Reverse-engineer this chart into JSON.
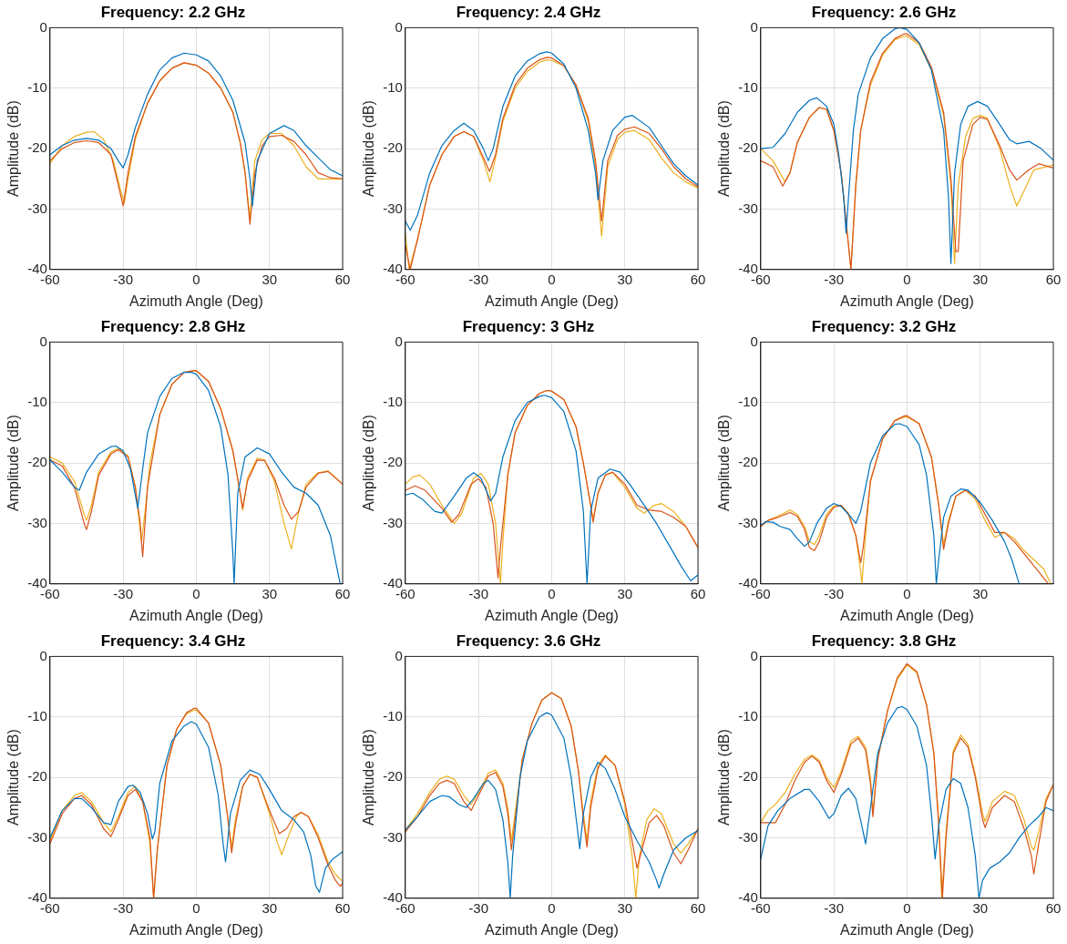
{
  "chart_data": [
    {
      "type": "line",
      "title": "Frequency: 2.2 GHz",
      "xlabel": "Azimuth Angle (Deg)",
      "ylabel": "Amplitude (dB)",
      "xlim": [
        -60,
        60
      ],
      "xticks": [
        -60,
        -30,
        0,
        30,
        60
      ],
      "ylim": [
        -40,
        0
      ],
      "yticks": [
        -40,
        -30,
        -20,
        -10,
        0
      ],
      "grid": true,
      "series": [
        {
          "color": "#0072bd",
          "x": [
            -60,
            -55,
            -50,
            -45,
            -40,
            -35,
            -32,
            -30,
            -28,
            -25,
            -20,
            -15,
            -10,
            -5,
            0,
            5,
            10,
            15,
            20,
            22,
            23,
            25,
            30,
            36,
            40,
            45,
            50,
            55,
            60
          ],
          "values": [
            -21,
            -19.5,
            -18.6,
            -18.3,
            -18.6,
            -20,
            -22,
            -23.2,
            -21,
            -16.5,
            -11,
            -7,
            -5,
            -4.2,
            -4.5,
            -5.5,
            -8,
            -12,
            -19,
            -25,
            -29.5,
            -22,
            -17.5,
            -16.2,
            -17,
            -19.5,
            -21.5,
            -23.5,
            -24.5
          ]
        },
        {
          "color": "#d95319",
          "x": [
            -60,
            -55,
            -50,
            -45,
            -40,
            -35,
            -32,
            -30,
            -28,
            -25,
            -20,
            -15,
            -10,
            -5,
            0,
            5,
            10,
            15,
            18,
            20,
            22,
            24,
            27,
            30,
            35,
            40,
            45,
            50,
            55,
            60
          ],
          "values": [
            -22,
            -20,
            -19,
            -18.7,
            -19,
            -21,
            -26,
            -29.5,
            -24,
            -18,
            -12.5,
            -8.8,
            -6.7,
            -5.8,
            -6.2,
            -7.5,
            -10,
            -14,
            -19,
            -24,
            -32.5,
            -24,
            -19.5,
            -18,
            -17.8,
            -18.8,
            -21,
            -24,
            -24.8,
            -25
          ]
        },
        {
          "color": "#edb120",
          "x": [
            -60,
            -55,
            -50,
            -45,
            -42,
            -38,
            -34,
            -31,
            -29.5,
            -28,
            -25,
            -20,
            -15,
            -10,
            -5,
            0,
            5,
            10,
            15,
            18,
            20,
            22,
            24,
            27,
            30,
            35,
            40,
            45,
            50,
            55,
            60
          ],
          "values": [
            -22.5,
            -19.5,
            -18,
            -17.3,
            -17.2,
            -18.5,
            -22,
            -27,
            -29,
            -25,
            -18.5,
            -12.5,
            -8.8,
            -6.7,
            -5.8,
            -6.2,
            -7.5,
            -10,
            -14,
            -19,
            -24,
            -31.5,
            -22,
            -18.5,
            -17.5,
            -17.5,
            -19.5,
            -23,
            -25,
            -25,
            -25
          ]
        }
      ]
    },
    {
      "type": "line",
      "title": "Frequency: 2.4 GHz",
      "xlabel": "Azimuth Angle (Deg)",
      "ylabel": "Amplitude (dB)",
      "xlim": [
        -60,
        60
      ],
      "xticks": [
        -60,
        -30,
        0,
        30,
        60
      ],
      "ylim": [
        -40,
        0
      ],
      "yticks": [
        -40,
        -30,
        -20,
        -10,
        0
      ],
      "grid": true,
      "series": [
        {
          "color": "#0072bd",
          "x": [
            -60,
            -58,
            -55,
            -50,
            -45,
            -40,
            -36,
            -32,
            -28,
            -26,
            -24,
            -20,
            -15,
            -10,
            -5,
            -2,
            0,
            5,
            10,
            15,
            18,
            19,
            21,
            25,
            30,
            33,
            40,
            45,
            50,
            55,
            60
          ],
          "values": [
            -32,
            -33.5,
            -31,
            -24,
            -19.5,
            -17,
            -15.8,
            -17,
            -20,
            -22,
            -20,
            -13,
            -8,
            -5.5,
            -4.3,
            -4,
            -4.2,
            -6,
            -10,
            -17,
            -24,
            -28.5,
            -22,
            -17,
            -14.8,
            -14.5,
            -16.5,
            -19.5,
            -22.5,
            -24.5,
            -26
          ]
        },
        {
          "color": "#d95319",
          "x": [
            -60,
            -58,
            -55,
            -50,
            -45,
            -40,
            -36,
            -32,
            -28,
            -25.5,
            -23,
            -20,
            -15,
            -10,
            -5,
            -2,
            0,
            5,
            10,
            15,
            18,
            20.5,
            23,
            27,
            30,
            34,
            40,
            45,
            50,
            55,
            60
          ],
          "values": [
            -36,
            -40,
            -35,
            -26,
            -21,
            -18,
            -17.2,
            -18,
            -21.5,
            -23.8,
            -21,
            -15,
            -9.5,
            -6.7,
            -5.3,
            -4.9,
            -5,
            -6.3,
            -9.5,
            -15,
            -22,
            -32,
            -22,
            -17.8,
            -16.8,
            -16.4,
            -17.5,
            -20,
            -23,
            -25,
            -26.3
          ]
        },
        {
          "color": "#edb120",
          "x": [
            -60,
            -58.5,
            -55,
            -50,
            -45,
            -40,
            -36,
            -32,
            -28,
            -25.3,
            -23,
            -20,
            -15,
            -10,
            -5,
            -2,
            0,
            5,
            10,
            15,
            18,
            20.5,
            23,
            27,
            30,
            34,
            40,
            45,
            50,
            55,
            60
          ],
          "values": [
            -34,
            -40,
            -35,
            -26,
            -21,
            -18,
            -17.2,
            -18,
            -22,
            -25.5,
            -21.5,
            -15.5,
            -10,
            -7.2,
            -5.7,
            -5.3,
            -5.4,
            -6.3,
            -9.5,
            -15.5,
            -23,
            -34.5,
            -23,
            -18.5,
            -17.3,
            -17,
            -18.5,
            -21.5,
            -24,
            -25.5,
            -26.5
          ]
        }
      ]
    },
    {
      "type": "line",
      "title": "Frequency: 2.6 GHz",
      "xlabel": "Azimuth Angle (Deg)",
      "ylabel": "Amplitude (dB)",
      "xlim": [
        -60,
        60
      ],
      "xticks": [
        -60,
        -30,
        0,
        30,
        60
      ],
      "ylim": [
        -40,
        0
      ],
      "yticks": [
        -40,
        -30,
        -20,
        -10,
        0
      ],
      "grid": true,
      "series": [
        {
          "color": "#0072bd",
          "x": [
            -60,
            -55,
            -50,
            -45,
            -40,
            -37,
            -33,
            -30,
            -28,
            -26,
            -25,
            -24,
            -22,
            -20,
            -15,
            -10,
            -5,
            -3,
            0,
            5,
            10,
            15,
            17,
            18,
            19.5,
            22,
            25,
            29,
            33,
            38,
            42,
            45,
            50,
            55,
            60
          ],
          "values": [
            -20,
            -19.8,
            -17.5,
            -14,
            -12,
            -11.6,
            -13,
            -16,
            -21,
            -28,
            -34,
            -28,
            -17,
            -11,
            -5,
            -1.8,
            -0.2,
            0,
            -0.3,
            -2.5,
            -7,
            -17,
            -28,
            -39,
            -24,
            -16,
            -13,
            -12.2,
            -13,
            -16,
            -18.5,
            -19.2,
            -18.8,
            -20,
            -21.9
          ]
        },
        {
          "color": "#d95319",
          "x": [
            -60,
            -55,
            -51,
            -48,
            -45,
            -40,
            -36,
            -33,
            -30,
            -27,
            -24.5,
            -23,
            -21,
            -19,
            -15,
            -10,
            -5,
            -1,
            0,
            5,
            10,
            15,
            18,
            20,
            21,
            23,
            27,
            30,
            33,
            38,
            42,
            45,
            50,
            54,
            60
          ],
          "values": [
            -22,
            -23,
            -26.2,
            -24,
            -19,
            -14.8,
            -13.2,
            -13.5,
            -17,
            -24,
            -34,
            -40,
            -26,
            -17,
            -9,
            -4.2,
            -1.8,
            -1,
            -1,
            -2.5,
            -6.5,
            -14,
            -25,
            -37,
            -37,
            -22,
            -16,
            -14.8,
            -15.2,
            -19.5,
            -23.5,
            -25.2,
            -23.5,
            -22.5,
            -23.2
          ]
        },
        {
          "color": "#edb120",
          "x": [
            -60,
            -55,
            -50,
            -48,
            -45,
            -40,
            -36,
            -33,
            -30,
            -27,
            -24.5,
            -23,
            -21,
            -19,
            -15,
            -10,
            -5,
            -1,
            0,
            5,
            10,
            15,
            18,
            19.5,
            21,
            24,
            27,
            30,
            33,
            38,
            42,
            45,
            48,
            52,
            60
          ],
          "values": [
            -20,
            -22,
            -25.5,
            -24,
            -19,
            -14.8,
            -13.2,
            -13.5,
            -17,
            -24,
            -34,
            -40,
            -26,
            -17,
            -9.5,
            -4.5,
            -2,
            -1.4,
            -1.4,
            -2.8,
            -7,
            -14.5,
            -26,
            -39,
            -26,
            -18,
            -15,
            -14.5,
            -15,
            -20,
            -26,
            -29.5,
            -27,
            -23.5,
            -22.7
          ]
        }
      ]
    },
    {
      "type": "line",
      "title": "Frequency: 2.8 GHz",
      "xlabel": "Azimuth Angle (Deg)",
      "ylabel": "Amplitude (dB)",
      "xlim": [
        -60,
        60
      ],
      "xticks": [
        -60,
        -30,
        0,
        30,
        60
      ],
      "ylim": [
        -40,
        0
      ],
      "yticks": [
        -40,
        -30,
        -20,
        -10,
        0
      ],
      "grid": true,
      "series": [
        {
          "color": "#0072bd",
          "x": [
            -60,
            -55,
            -50,
            -48,
            -45,
            -40,
            -35,
            -33,
            -30,
            -27,
            -24,
            -22,
            -20,
            -15,
            -10,
            -5,
            -2,
            0,
            5,
            10,
            13,
            15,
            15.5,
            17,
            20,
            25,
            30,
            35,
            40,
            45,
            50,
            55,
            58,
            59
          ],
          "values": [
            -19.5,
            -21.5,
            -24,
            -24.5,
            -21.5,
            -18.5,
            -17.3,
            -17.2,
            -18,
            -21,
            -27.5,
            -21,
            -15,
            -9,
            -6,
            -5,
            -5,
            -5.3,
            -8,
            -14,
            -22,
            -35,
            -40,
            -25,
            -19,
            -17.5,
            -18.5,
            -21.5,
            -24,
            -25,
            -27,
            -32,
            -38,
            -40
          ]
        },
        {
          "color": "#d95319",
          "x": [
            -60,
            -55,
            -50,
            -46,
            -45,
            -43,
            -40,
            -35,
            -32,
            -28,
            -25,
            -23,
            -22,
            -20,
            -15,
            -10,
            -5,
            -1,
            0,
            5,
            10,
            15,
            18,
            19,
            21,
            25,
            28,
            32,
            36,
            39,
            42,
            45,
            50,
            54,
            60
          ],
          "values": [
            -19.5,
            -20.5,
            -24,
            -30,
            -31,
            -28,
            -22,
            -18.5,
            -17.8,
            -19,
            -24,
            -30,
            -35.5,
            -24,
            -12,
            -7,
            -5,
            -4.7,
            -4.7,
            -6.5,
            -11,
            -18,
            -25,
            -27.5,
            -23,
            -19.5,
            -19.6,
            -22.5,
            -27,
            -29.3,
            -28,
            -24,
            -21.7,
            -21.4,
            -23.5
          ]
        },
        {
          "color": "#edb120",
          "x": [
            -60,
            -55,
            -50,
            -46,
            -45,
            -43,
            -40,
            -35,
            -32,
            -28,
            -25,
            -22.5,
            -21,
            -19,
            -15,
            -10,
            -5,
            -1,
            0,
            5,
            10,
            15,
            18,
            19,
            21,
            25,
            28,
            32,
            36,
            39,
            42,
            45,
            50,
            54,
            60
          ],
          "values": [
            -19,
            -20,
            -23,
            -28.5,
            -29.5,
            -27,
            -21.5,
            -18.2,
            -17.6,
            -18.8,
            -24,
            -33,
            -28,
            -20,
            -12,
            -7,
            -5,
            -4.8,
            -4.8,
            -6.5,
            -11,
            -18,
            -25,
            -27.8,
            -22.5,
            -19.2,
            -19.5,
            -23,
            -30,
            -34.2,
            -28,
            -23.5,
            -21.6,
            -21.3,
            -23.5
          ]
        }
      ]
    },
    {
      "type": "line",
      "title": "Frequency: 3 GHz",
      "xlabel": "Azimuth Angle (Deg)",
      "ylabel": "Amplitude (dB)",
      "xlim": [
        -60,
        60
      ],
      "xticks": [
        -60,
        -30,
        0,
        30,
        60
      ],
      "ylim": [
        -40,
        0
      ],
      "yticks": [
        -40,
        -30,
        -20,
        -10,
        0
      ],
      "grid": true,
      "series": [
        {
          "color": "#0072bd",
          "x": [
            -60,
            -57,
            -53,
            -48,
            -45,
            -40,
            -35,
            -32,
            -29,
            -25,
            -23,
            -20,
            -15,
            -10,
            -5,
            -3,
            0,
            5,
            10,
            13,
            14.5,
            16,
            19,
            24,
            28,
            32,
            38,
            43,
            48,
            53,
            57,
            60
          ],
          "values": [
            -25.3,
            -25,
            -26,
            -28,
            -28.3,
            -25.5,
            -22.5,
            -21.6,
            -22.5,
            -26.3,
            -25,
            -19,
            -13,
            -10,
            -9,
            -8.8,
            -9.2,
            -11.5,
            -18,
            -28,
            -40,
            -28,
            -22.5,
            -21,
            -21.5,
            -23.5,
            -27,
            -30,
            -33.5,
            -37,
            -39.5,
            -38.5
          ]
        },
        {
          "color": "#d95319",
          "x": [
            -60,
            -56,
            -52,
            -45,
            -41,
            -38,
            -33,
            -30,
            -27,
            -24,
            -22,
            -21,
            -18,
            -15,
            -10,
            -5,
            -2,
            0,
            5,
            10,
            13,
            16,
            17,
            19,
            22,
            25,
            30,
            35,
            40,
            45,
            50,
            55,
            60
          ],
          "values": [
            -24.5,
            -23.8,
            -24.5,
            -27.5,
            -29.8,
            -28.5,
            -23.5,
            -22.6,
            -24,
            -30,
            -39,
            -34,
            -22,
            -15,
            -10.5,
            -8.5,
            -8,
            -8.1,
            -9.5,
            -14,
            -20,
            -27,
            -29.8,
            -25,
            -22,
            -21.5,
            -23.5,
            -27,
            -27.8,
            -28,
            -29,
            -30.5,
            -34
          ]
        },
        {
          "color": "#edb120",
          "x": [
            -60,
            -57,
            -54,
            -50,
            -45,
            -40,
            -37,
            -32,
            -29,
            -26,
            -23,
            -21,
            -20,
            -18,
            -15,
            -10,
            -5,
            -2,
            0,
            5,
            10,
            13,
            16,
            17,
            19,
            22,
            25,
            30,
            35,
            38,
            42,
            45,
            50,
            55,
            60
          ],
          "values": [
            -23.5,
            -22.3,
            -22,
            -23.5,
            -27,
            -30,
            -28.5,
            -22.5,
            -21.7,
            -23.5,
            -30,
            -40,
            -33,
            -22,
            -15,
            -10.5,
            -8.5,
            -8,
            -8.1,
            -9.5,
            -14,
            -20,
            -27,
            -29.3,
            -25,
            -22,
            -21.6,
            -24,
            -27.5,
            -28.3,
            -27,
            -26.7,
            -28,
            -30.5,
            -34
          ]
        }
      ]
    },
    {
      "type": "line",
      "title": "Frequency: 3.2 GHz",
      "xlabel": "Azimuth Angle (Deg)",
      "ylabel": "Amplitude (dB)",
      "xlim": [
        -60,
        60
      ],
      "xticks": [
        -60,
        -30,
        0,
        30
      ],
      "ylim": [
        -40,
        0
      ],
      "yticks": [
        -40,
        -30,
        -20,
        -10,
        0
      ],
      "grid": true,
      "series": [
        {
          "color": "#0072bd",
          "x": [
            -60,
            -58,
            -55,
            -52,
            -48,
            -45,
            -42,
            -40,
            -37,
            -33,
            -30,
            -27,
            -24,
            -21,
            -19,
            -15,
            -10,
            -5,
            -3,
            0,
            5,
            8,
            11,
            12,
            13,
            15,
            18,
            22,
            25,
            30,
            35,
            40,
            43,
            46
          ],
          "values": [
            -30.3,
            -29.7,
            -29.8,
            -30.5,
            -31,
            -32.5,
            -33.8,
            -33,
            -30,
            -27.5,
            -26.7,
            -27.2,
            -28.5,
            -30,
            -28,
            -20,
            -15.5,
            -13.6,
            -13.5,
            -14,
            -17,
            -22,
            -32,
            -40,
            -36,
            -29,
            -25.5,
            -24.3,
            -24.5,
            -26.5,
            -29.5,
            -33,
            -36,
            -40
          ]
        },
        {
          "color": "#d95319",
          "x": [
            -60,
            -57,
            -53,
            -48,
            -45,
            -42,
            -40,
            -38,
            -36,
            -33,
            -30,
            -27,
            -24,
            -21,
            -19,
            -18,
            -15,
            -10,
            -5,
            -1,
            0,
            5,
            10,
            13,
            15,
            17,
            20,
            24,
            28,
            32,
            36,
            40,
            44,
            48,
            52,
            55,
            58
          ],
          "values": [
            -30.5,
            -29.5,
            -29,
            -28.2,
            -28.8,
            -31,
            -34,
            -34.5,
            -33,
            -29,
            -27.3,
            -27,
            -28.5,
            -32,
            -36.5,
            -34,
            -23,
            -16,
            -13,
            -12.2,
            -12.2,
            -13.5,
            -19,
            -27,
            -34.3,
            -30,
            -25.5,
            -24.5,
            -25.5,
            -28.5,
            -31.5,
            -31.5,
            -33,
            -35,
            -37,
            -38.5,
            -40
          ]
        },
        {
          "color": "#edb120",
          "x": [
            -60,
            -57,
            -53,
            -48,
            -45,
            -42,
            -40,
            -38,
            -36,
            -33,
            -30,
            -27,
            -24,
            -21,
            -19,
            -18.5,
            -17,
            -15,
            -10,
            -5,
            -1,
            0,
            5,
            10,
            13,
            15,
            17,
            20,
            24,
            28,
            32,
            36,
            40,
            44,
            48,
            52,
            56,
            59
          ],
          "values": [
            -30.5,
            -29.5,
            -28.8,
            -27.8,
            -28.5,
            -30.5,
            -33,
            -33.5,
            -32,
            -28.5,
            -27.1,
            -27,
            -28.3,
            -32,
            -38,
            -40,
            -32,
            -23,
            -16,
            -13,
            -12.4,
            -12.4,
            -13.5,
            -19,
            -27,
            -33.5,
            -29.5,
            -25.5,
            -24.5,
            -26,
            -29.5,
            -32.3,
            -31.5,
            -32.5,
            -34.5,
            -36,
            -37.5,
            -40
          ]
        }
      ]
    },
    {
      "type": "line",
      "title": "Frequency: 3.4 GHz",
      "xlabel": "Azimuth Angle (Deg)",
      "ylabel": "Amplitude (dB)",
      "xlim": [
        -60,
        60
      ],
      "xticks": [
        -60,
        -30,
        0,
        30,
        60
      ],
      "ylim": [
        -40,
        0
      ],
      "yticks": [
        -40,
        -30,
        -20,
        -10,
        0
      ],
      "grid": true,
      "series": [
        {
          "color": "#0072bd",
          "x": [
            -60,
            -55,
            -50,
            -47,
            -43,
            -38,
            -35,
            -32,
            -28,
            -26,
            -23,
            -20,
            -18,
            -17,
            -15,
            -10,
            -5,
            -2,
            0,
            5,
            9,
            11,
            12,
            14,
            18,
            22,
            26,
            30,
            35,
            40,
            44,
            47,
            49,
            50.5,
            53,
            56,
            60
          ],
          "values": [
            -30,
            -25.5,
            -23.5,
            -23.5,
            -25,
            -27.5,
            -27.8,
            -24,
            -21.5,
            -21.3,
            -22.5,
            -26,
            -30.2,
            -29,
            -21,
            -14,
            -11.5,
            -10.8,
            -11.2,
            -15,
            -23,
            -31,
            -34,
            -26,
            -20.5,
            -18.8,
            -19.5,
            -22,
            -25.5,
            -27,
            -29,
            -33,
            -38,
            -39,
            -35,
            -33.5,
            -32.3
          ]
        },
        {
          "color": "#d95319",
          "x": [
            -60,
            -55,
            -50,
            -47,
            -43,
            -38,
            -35,
            -32,
            -28,
            -25,
            -22,
            -19,
            -17.5,
            -16,
            -12,
            -8,
            -4,
            -1,
            0,
            5,
            10,
            13,
            14.5,
            16,
            19,
            22,
            25,
            30,
            34,
            37,
            40,
            43,
            46,
            50,
            54,
            57,
            59,
            60
          ],
          "values": [
            -31,
            -26,
            -23.5,
            -23,
            -24.5,
            -28.5,
            -29.8,
            -27,
            -23,
            -22,
            -24,
            -30,
            -40,
            -32,
            -18,
            -12,
            -9.3,
            -8.6,
            -8.6,
            -11,
            -18,
            -27,
            -32.5,
            -28,
            -21.5,
            -19.5,
            -20,
            -25.5,
            -29.3,
            -28.5,
            -26.5,
            -25.8,
            -26.5,
            -30,
            -34.5,
            -37,
            -38,
            -37.5
          ]
        },
        {
          "color": "#edb120",
          "x": [
            -60,
            -55,
            -50,
            -47,
            -43,
            -38,
            -35,
            -32,
            -28,
            -25,
            -22,
            -19,
            -17.5,
            -16,
            -12,
            -8,
            -4,
            -1,
            0,
            5,
            10,
            13,
            14.5,
            16,
            19,
            22,
            25,
            30,
            33,
            35,
            38,
            41,
            43,
            46,
            50,
            54,
            57,
            60
          ],
          "values": [
            -30.5,
            -25.5,
            -23,
            -22.5,
            -24,
            -27.5,
            -29,
            -26.5,
            -22.5,
            -21.5,
            -24,
            -31,
            -40,
            -32,
            -18,
            -12,
            -9.5,
            -8.9,
            -8.9,
            -11,
            -18,
            -27,
            -31.5,
            -27,
            -21.5,
            -19.5,
            -20,
            -26,
            -30.5,
            -32.8,
            -29.5,
            -26.5,
            -25.8,
            -26.5,
            -29.5,
            -34,
            -36,
            -37.2
          ]
        }
      ]
    },
    {
      "type": "line",
      "title": "Frequency: 3.6 GHz",
      "xlabel": "Azimuth Angle (Deg)",
      "ylabel": "Amplitude (dB)",
      "xlim": [
        -60,
        60
      ],
      "xticks": [
        -60,
        -30,
        0,
        30,
        60
      ],
      "ylim": [
        -40,
        0
      ],
      "yticks": [
        -40,
        -30,
        -20,
        -10,
        0
      ],
      "grid": true,
      "series": [
        {
          "color": "#0072bd",
          "x": [
            -60,
            -55,
            -50,
            -45,
            -42,
            -38,
            -35,
            -32,
            -28,
            -26,
            -23,
            -20,
            -18,
            -17,
            -16,
            -13,
            -10,
            -5,
            -2,
            0,
            5,
            8,
            11,
            11.5,
            13,
            16,
            19,
            22,
            26,
            30,
            35,
            40,
            43,
            44,
            46,
            50,
            55,
            60
          ],
          "values": [
            -28.7,
            -26.5,
            -24,
            -23,
            -23.2,
            -24.5,
            -25,
            -23.5,
            -21,
            -20.5,
            -22,
            -27,
            -34,
            -40,
            -33,
            -20,
            -14,
            -10,
            -9.3,
            -9.7,
            -13.5,
            -20,
            -30,
            -31.8,
            -26,
            -20,
            -17.5,
            -18.5,
            -22,
            -26.5,
            -30.5,
            -34,
            -37,
            -38.3,
            -36,
            -32,
            -30,
            -28.8
          ]
        },
        {
          "color": "#d95319",
          "x": [
            -60,
            -55,
            -50,
            -46,
            -43,
            -40,
            -36,
            -33,
            -30,
            -26,
            -23,
            -20,
            -18,
            -16.5,
            -15,
            -12,
            -8,
            -4,
            0,
            4,
            8,
            11,
            13,
            14.5,
            16,
            19,
            22,
            26,
            30,
            33,
            35,
            37,
            40,
            43,
            46,
            50,
            53,
            56,
            60
          ],
          "values": [
            -29,
            -26.5,
            -23,
            -21,
            -20.5,
            -21,
            -24,
            -25.5,
            -23,
            -19.8,
            -19.2,
            -21.5,
            -26,
            -32,
            -27,
            -17,
            -11,
            -7.2,
            -6,
            -7,
            -11.5,
            -19,
            -27,
            -31.5,
            -25,
            -18.5,
            -16.5,
            -18,
            -24,
            -30.5,
            -35,
            -32,
            -27.5,
            -26.3,
            -28,
            -32.5,
            -34.3,
            -32,
            -28.5
          ]
        },
        {
          "color": "#edb120",
          "x": [
            -60,
            -55,
            -50,
            -46,
            -43,
            -40,
            -36,
            -33,
            -30,
            -26,
            -23,
            -20,
            -18,
            -16.5,
            -15,
            -12,
            -8,
            -4,
            0,
            4,
            8,
            11,
            13,
            14.5,
            16,
            19,
            22,
            26,
            30,
            33,
            34.5,
            36,
            39,
            42,
            45,
            50,
            53,
            56,
            60
          ],
          "values": [
            -28.7,
            -26,
            -22.5,
            -20.3,
            -19.8,
            -20.3,
            -23,
            -24.5,
            -22.5,
            -19.3,
            -18.8,
            -21,
            -25,
            -30.5,
            -26,
            -17,
            -11,
            -7.2,
            -6,
            -7,
            -11.5,
            -19,
            -26,
            -30.5,
            -24,
            -18,
            -16.3,
            -18,
            -24.5,
            -33,
            -40,
            -33,
            -27,
            -25.2,
            -26,
            -31,
            -32.5,
            -31,
            -28.5
          ]
        }
      ]
    },
    {
      "type": "line",
      "title": "Frequency: 3.8 GHz",
      "xlabel": "Azimuth Angle (Deg)",
      "ylabel": "Amplitude (dB)",
      "xlim": [
        -60,
        60
      ],
      "xticks": [
        -60,
        -30,
        0,
        30,
        60
      ],
      "ylim": [
        -40,
        0
      ],
      "yticks": [
        -40,
        -30,
        -20,
        -10,
        0
      ],
      "grid": true,
      "series": [
        {
          "color": "#0072bd",
          "x": [
            -60,
            -57,
            -53,
            -48,
            -42,
            -40,
            -36,
            -32,
            -30,
            -27,
            -24,
            -21,
            -18,
            -17,
            -15,
            -12,
            -8,
            -4,
            -2,
            0,
            4,
            8,
            10,
            11.5,
            13,
            16,
            19,
            22,
            25,
            28,
            29.5,
            31,
            34,
            38,
            42,
            46,
            50,
            54,
            57,
            60
          ],
          "values": [
            -33.5,
            -28,
            -25.5,
            -23.5,
            -22,
            -22,
            -24,
            -26.8,
            -26,
            -23,
            -21.8,
            -23.5,
            -29,
            -31,
            -25,
            -16,
            -11,
            -8.5,
            -8.3,
            -8.8,
            -11.5,
            -18,
            -26,
            -33.5,
            -28,
            -22,
            -20.2,
            -21,
            -25,
            -33,
            -40,
            -37,
            -35,
            -34,
            -32.5,
            -30,
            -28,
            -26.5,
            -25,
            -25.5
          ]
        },
        {
          "color": "#d95319",
          "x": [
            -60,
            -57,
            -54,
            -50,
            -46,
            -42,
            -39,
            -36,
            -33,
            -30,
            -27,
            -23,
            -20,
            -17,
            -15,
            -14,
            -12,
            -8,
            -4,
            0,
            4,
            8,
            11,
            13,
            14.5,
            16,
            19,
            22,
            25,
            28,
            31,
            32,
            35,
            40,
            44,
            48,
            51,
            52,
            54,
            57,
            60
          ],
          "values": [
            -27.5,
            -27.5,
            -27.5,
            -24.5,
            -20.5,
            -17.5,
            -16.5,
            -17.5,
            -20.5,
            -22.5,
            -19.5,
            -14.5,
            -13.5,
            -15.5,
            -21,
            -26.5,
            -17,
            -9,
            -3.5,
            -1.2,
            -2.5,
            -8,
            -16,
            -28,
            -40,
            -30,
            -16,
            -13.5,
            -15,
            -20,
            -27,
            -28.3,
            -25,
            -23,
            -24,
            -28.5,
            -33,
            -36,
            -31,
            -24,
            -21.2
          ]
        },
        {
          "color": "#edb120",
          "x": [
            -60,
            -57,
            -54,
            -50,
            -46,
            -42,
            -39,
            -36,
            -33,
            -30,
            -27,
            -23,
            -20,
            -17,
            -15,
            -14,
            -12,
            -8,
            -4,
            0,
            4,
            8,
            11,
            13,
            14.2,
            16,
            19,
            22,
            25,
            28,
            31,
            32,
            35,
            40,
            44,
            48,
            51,
            52,
            54,
            57,
            60
          ],
          "values": [
            -27.5,
            -25.5,
            -24.5,
            -22.5,
            -19.5,
            -17,
            -16.3,
            -17.2,
            -20,
            -21.7,
            -19,
            -14,
            -13.2,
            -15,
            -20,
            -26,
            -17,
            -9,
            -3.8,
            -1.4,
            -2.7,
            -8,
            -16,
            -27,
            -40,
            -29,
            -15.5,
            -13,
            -14.5,
            -19.5,
            -26,
            -27.3,
            -24,
            -22.3,
            -23,
            -27,
            -31.5,
            -32,
            -29,
            -23.5,
            -21.2
          ]
        }
      ]
    }
  ]
}
